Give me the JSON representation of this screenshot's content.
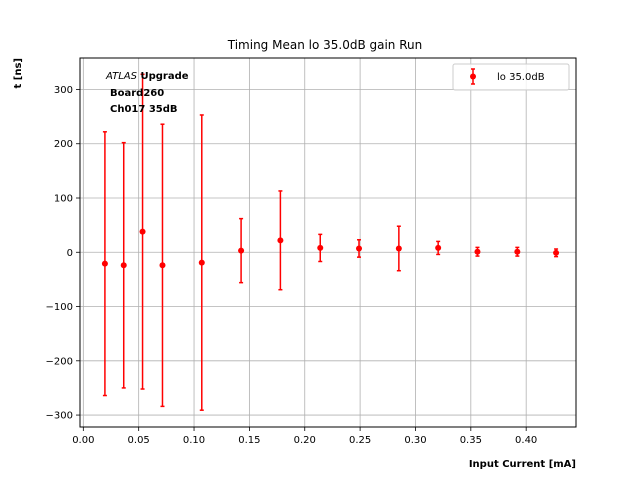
{
  "chart_data": {
    "type": "scatter",
    "title": "Timing Mean lo 35.0dB gain Run",
    "xlabel": "Input Current [mA]",
    "ylabel": "t [ns]",
    "xlim": [
      -0.003,
      0.445
    ],
    "ylim": [
      -322,
      358
    ],
    "xticks": [
      "0.00",
      "0.05",
      "0.10",
      "0.15",
      "0.20",
      "0.25",
      "0.30",
      "0.35",
      "0.40"
    ],
    "yticks": [
      "−300",
      "−200",
      "−100",
      "0",
      "100",
      "200",
      "300"
    ],
    "grid": true,
    "legend_position": "top-right",
    "annotation": {
      "italic": "ATLAS",
      "bold": "Upgrade",
      "line2": "Board260",
      "line3": "Ch017 35dB"
    },
    "series": [
      {
        "name": "lo 35.0dB",
        "color": "#ff0000",
        "x": [
          0.0195,
          0.0365,
          0.0535,
          0.0715,
          0.107,
          0.1425,
          0.178,
          0.214,
          0.249,
          0.285,
          0.3205,
          0.356,
          0.392,
          0.427
        ],
        "y": [
          -21,
          -24,
          38,
          -24,
          -19,
          3,
          22,
          8,
          7,
          7,
          8,
          1,
          1,
          -1
        ],
        "yerr": [
          243,
          226,
          290,
          260,
          272,
          59,
          91,
          25,
          16,
          41,
          12,
          8,
          8,
          7
        ]
      }
    ]
  }
}
